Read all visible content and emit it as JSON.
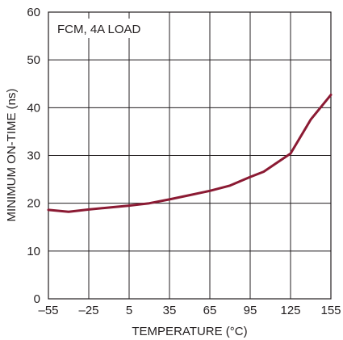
{
  "chart_data": {
    "type": "line",
    "annotation": "FCM, 4A LOAD",
    "xlabel": "TEMPERATURE (°C)",
    "ylabel": "MINIMUM ON-TIME (ns)",
    "xlim": [
      -55,
      155
    ],
    "ylim": [
      0,
      60
    ],
    "xticks": [
      -55,
      -25,
      5,
      35,
      65,
      95,
      125,
      155
    ],
    "xtick_labels": [
      "–55",
      "–25",
      "5",
      "35",
      "65",
      "95",
      "125",
      "155"
    ],
    "yticks": [
      0,
      10,
      20,
      30,
      40,
      50,
      60
    ],
    "ytick_labels": [
      "0",
      "10",
      "20",
      "30",
      "40",
      "50",
      "60"
    ],
    "grid": true,
    "series": [
      {
        "color": "#8b1a33",
        "x": [
          -55,
          -40,
          -25,
          -10,
          5,
          20,
          35,
          50,
          65,
          80,
          95,
          105,
          125,
          140,
          155
        ],
        "y": [
          18.6,
          18.2,
          18.7,
          19.1,
          19.5,
          20.0,
          20.8,
          21.7,
          22.6,
          23.7,
          25.5,
          26.6,
          30.4,
          37.5,
          42.7
        ]
      }
    ]
  }
}
